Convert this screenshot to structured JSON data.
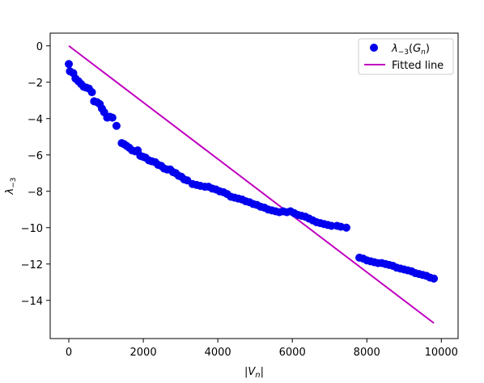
{
  "chart_data": {
    "type": "scatter",
    "title": "",
    "xlabel": "|V_n|",
    "ylabel": "λ_{-3}",
    "xlim": [
      -500,
      10450
    ],
    "ylim": [
      -16.1,
      0.7
    ],
    "x_ticks": [
      0,
      2000,
      4000,
      6000,
      8000,
      10000
    ],
    "x_tick_labels": [
      "0",
      "2000",
      "4000",
      "6000",
      "8000",
      "10000"
    ],
    "y_ticks": [
      0,
      -2,
      -4,
      -6,
      -8,
      -10,
      -12,
      -14
    ],
    "y_tick_labels": [
      "0",
      "−2",
      "−4",
      "−6",
      "−8",
      "−10",
      "−12",
      "−14"
    ],
    "grid": false,
    "legend_position": "top-right",
    "series": [
      {
        "name": "λ−3(Gn)",
        "kind": "scatter",
        "color": "#0000ee",
        "points": [
          [
            0,
            -1.0
          ],
          [
            30,
            -1.4
          ],
          [
            120,
            -1.5
          ],
          [
            180,
            -1.8
          ],
          [
            260,
            -1.95
          ],
          [
            330,
            -2.1
          ],
          [
            400,
            -2.25
          ],
          [
            470,
            -2.3
          ],
          [
            540,
            -2.35
          ],
          [
            620,
            -2.55
          ],
          [
            680,
            -3.05
          ],
          [
            760,
            -3.1
          ],
          [
            830,
            -3.2
          ],
          [
            890,
            -3.45
          ],
          [
            950,
            -3.65
          ],
          [
            1030,
            -3.95
          ],
          [
            1100,
            -3.9
          ],
          [
            1170,
            -3.95
          ],
          [
            1280,
            -4.4
          ],
          [
            1420,
            -5.35
          ],
          [
            1480,
            -5.4
          ],
          [
            1550,
            -5.5
          ],
          [
            1620,
            -5.6
          ],
          [
            1700,
            -5.75
          ],
          [
            1780,
            -5.8
          ],
          [
            1850,
            -5.75
          ],
          [
            1920,
            -6.05
          ],
          [
            1990,
            -6.1
          ],
          [
            2060,
            -6.15
          ],
          [
            2150,
            -6.3
          ],
          [
            2230,
            -6.35
          ],
          [
            2320,
            -6.4
          ],
          [
            2400,
            -6.55
          ],
          [
            2480,
            -6.6
          ],
          [
            2560,
            -6.75
          ],
          [
            2640,
            -6.8
          ],
          [
            2720,
            -6.8
          ],
          [
            2800,
            -6.95
          ],
          [
            2870,
            -7.0
          ],
          [
            2950,
            -7.15
          ],
          [
            3020,
            -7.2
          ],
          [
            3100,
            -7.35
          ],
          [
            3180,
            -7.4
          ],
          [
            3320,
            -7.6
          ],
          [
            3430,
            -7.65
          ],
          [
            3530,
            -7.7
          ],
          [
            3650,
            -7.75
          ],
          [
            3750,
            -7.75
          ],
          [
            3850,
            -7.85
          ],
          [
            3950,
            -7.9
          ],
          [
            4050,
            -8.0
          ],
          [
            4150,
            -8.05
          ],
          [
            4250,
            -8.15
          ],
          [
            4350,
            -8.3
          ],
          [
            4450,
            -8.35
          ],
          [
            4550,
            -8.4
          ],
          [
            4650,
            -8.45
          ],
          [
            4750,
            -8.55
          ],
          [
            4850,
            -8.6
          ],
          [
            4950,
            -8.7
          ],
          [
            5050,
            -8.75
          ],
          [
            5150,
            -8.85
          ],
          [
            5250,
            -8.9
          ],
          [
            5350,
            -9.0
          ],
          [
            5450,
            -9.05
          ],
          [
            5550,
            -9.1
          ],
          [
            5650,
            -9.15
          ],
          [
            5750,
            -9.1
          ],
          [
            5850,
            -9.15
          ],
          [
            5950,
            -9.1
          ],
          [
            6050,
            -9.2
          ],
          [
            6150,
            -9.3
          ],
          [
            6250,
            -9.35
          ],
          [
            6350,
            -9.4
          ],
          [
            6450,
            -9.5
          ],
          [
            6550,
            -9.6
          ],
          [
            6650,
            -9.7
          ],
          [
            6750,
            -9.75
          ],
          [
            6850,
            -9.8
          ],
          [
            6950,
            -9.85
          ],
          [
            7050,
            -9.9
          ],
          [
            7200,
            -9.9
          ],
          [
            7300,
            -9.95
          ],
          [
            7450,
            -10.0
          ],
          [
            7800,
            -11.65
          ],
          [
            7900,
            -11.7
          ],
          [
            8000,
            -11.8
          ],
          [
            8100,
            -11.85
          ],
          [
            8200,
            -11.9
          ],
          [
            8300,
            -11.95
          ],
          [
            8400,
            -11.95
          ],
          [
            8500,
            -12.0
          ],
          [
            8600,
            -12.05
          ],
          [
            8700,
            -12.1
          ],
          [
            8800,
            -12.2
          ],
          [
            8900,
            -12.25
          ],
          [
            9000,
            -12.3
          ],
          [
            9100,
            -12.35
          ],
          [
            9200,
            -12.4
          ],
          [
            9300,
            -12.5
          ],
          [
            9400,
            -12.55
          ],
          [
            9500,
            -12.6
          ],
          [
            9600,
            -12.65
          ],
          [
            9700,
            -12.75
          ],
          [
            9800,
            -12.8
          ]
        ]
      },
      {
        "name": "Fitted line",
        "kind": "line",
        "color": "#bf00bf",
        "x": [
          0,
          9800
        ],
        "y": [
          0,
          -15.25
        ]
      }
    ]
  }
}
